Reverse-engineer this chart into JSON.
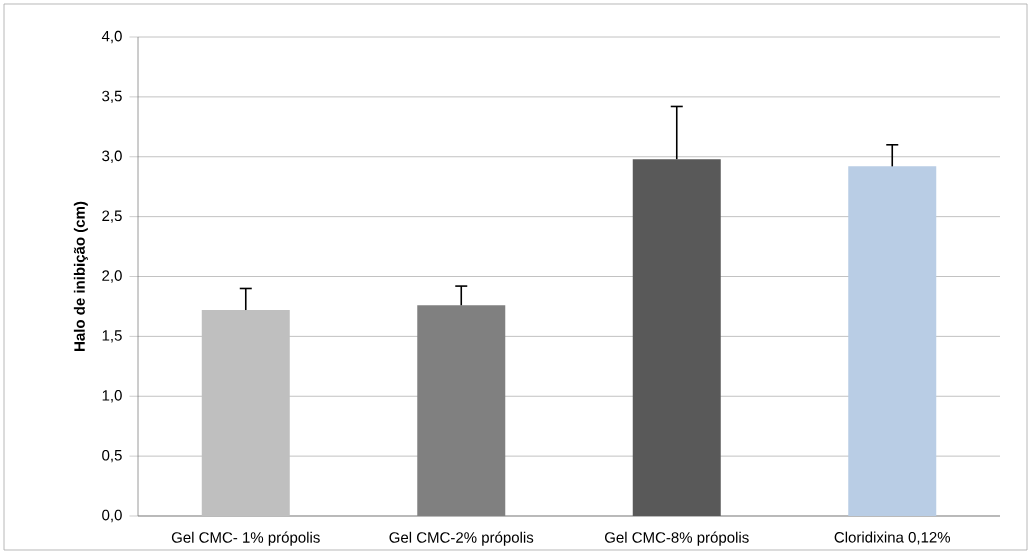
{
  "chart_data": {
    "type": "bar",
    "ylabel": "Halo de inibição (cm)",
    "categories": [
      "Gel CMC- 1%  própolis",
      "Gel CMC-2% própolis",
      "Gel CMC-8% própolis",
      "Cloridixina 0,12%"
    ],
    "values": [
      1.72,
      1.76,
      2.98,
      2.92
    ],
    "errors": [
      0.18,
      0.16,
      0.44,
      0.18
    ],
    "colors": [
      "#bfbfbf",
      "#808080",
      "#595959",
      "#b9cde5"
    ],
    "ylim": [
      0,
      4
    ],
    "yticks": [
      {
        "value": 0,
        "label": "0,0"
      },
      {
        "value": 0.5,
        "label": "0,5"
      },
      {
        "value": 1,
        "label": "1,0"
      },
      {
        "value": 1.5,
        "label": "1,5"
      },
      {
        "value": 2,
        "label": "2,0"
      },
      {
        "value": 2.5,
        "label": "2,5"
      },
      {
        "value": 3,
        "label": "3,0"
      },
      {
        "value": 3.5,
        "label": "3,5"
      },
      {
        "value": 4,
        "label": "4,0"
      }
    ],
    "grid": "y"
  }
}
